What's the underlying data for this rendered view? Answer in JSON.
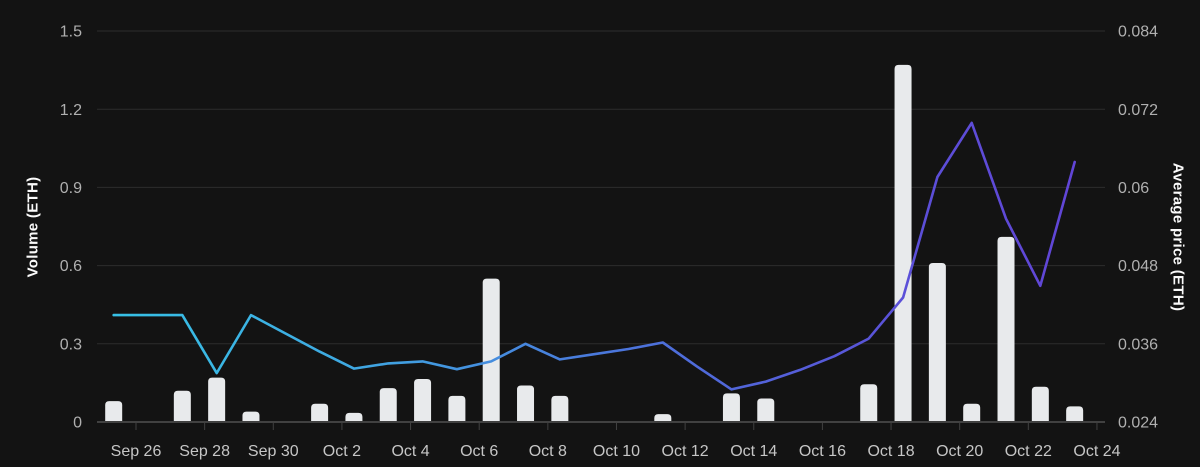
{
  "chart": {
    "left_axis_title": "Volume (ETH)",
    "right_axis_title": "Average price (ETH)"
  },
  "colors": {
    "background": "#131313",
    "grid": "#2d2d2d",
    "axis_line": "#414141",
    "bar": "#e8eaec",
    "y_tick_label": "#b0b0b0",
    "x_tick_label": "#c6c6c6",
    "axis_title": "#fafafa",
    "line_gradient": [
      "#36c3e6",
      "#3fa9e2",
      "#4a78dc",
      "#5b50d8",
      "#6243d6"
    ]
  },
  "chart_data": {
    "type": "combo",
    "title": "",
    "grid": true,
    "legend": false,
    "x_axis": {
      "tick_labels": [
        "Sep 26",
        "Sep 28",
        "Sep 30",
        "Oct 2",
        "Oct 4",
        "Oct 6",
        "Oct 8",
        "Oct 10",
        "Oct 12",
        "Oct 14",
        "Oct 16",
        "Oct 18",
        "Oct 20",
        "Oct 22",
        "Oct 24"
      ]
    },
    "left_axis": {
      "title": "Volume (ETH)",
      "range": [
        0,
        1.5
      ],
      "ticks": [
        0,
        0.3,
        0.6,
        0.9,
        1.2,
        1.5
      ],
      "tick_labels": [
        "0",
        "0.3",
        "0.6",
        "0.9",
        "1.2",
        "1.5"
      ]
    },
    "right_axis": {
      "title": "Average price (ETH)",
      "range": [
        0.024,
        0.084
      ],
      "ticks": [
        0.024,
        0.036,
        0.048,
        0.06,
        0.072,
        0.084
      ],
      "tick_labels": [
        "0.024",
        "0.036",
        "0.048",
        "0.06",
        "0.072",
        "0.084"
      ]
    },
    "series": [
      {
        "name": "Volume (ETH)",
        "type": "bar",
        "axis": "left",
        "color": "#e8eaec",
        "points": [
          {
            "date": "Sep 25",
            "value": 0.08
          },
          {
            "date": "Sep 27",
            "value": 0.12
          },
          {
            "date": "Sep 28",
            "value": 0.17
          },
          {
            "date": "Sep 29",
            "value": 0.04
          },
          {
            "date": "Oct 1",
            "value": 0.07
          },
          {
            "date": "Oct 2",
            "value": 0.035
          },
          {
            "date": "Oct 3",
            "value": 0.13
          },
          {
            "date": "Oct 4",
            "value": 0.165
          },
          {
            "date": "Oct 5",
            "value": 0.1
          },
          {
            "date": "Oct 6",
            "value": 0.55
          },
          {
            "date": "Oct 7",
            "value": 0.14
          },
          {
            "date": "Oct 8",
            "value": 0.1
          },
          {
            "date": "Oct 11",
            "value": 0.03
          },
          {
            "date": "Oct 13",
            "value": 0.11
          },
          {
            "date": "Oct 14",
            "value": 0.09
          },
          {
            "date": "Oct 17",
            "value": 0.145
          },
          {
            "date": "Oct 18",
            "value": 1.37
          },
          {
            "date": "Oct 19",
            "value": 0.61
          },
          {
            "date": "Oct 20",
            "value": 0.07
          },
          {
            "date": "Oct 21",
            "value": 0.71
          },
          {
            "date": "Oct 22",
            "value": 0.135
          },
          {
            "date": "Oct 23",
            "value": 0.06
          }
        ]
      },
      {
        "name": "Average price (ETH)",
        "type": "line",
        "axis": "right",
        "gradient": [
          "#36c3e6",
          "#3fa9e2",
          "#4a78dc",
          "#5b50d8",
          "#6243d6"
        ],
        "points": [
          {
            "date": "Sep 25",
            "value": 0.0404
          },
          {
            "date": "Sep 26",
            "value": 0.0404
          },
          {
            "date": "Sep 27",
            "value": 0.0404
          },
          {
            "date": "Sep 28",
            "value": 0.0315
          },
          {
            "date": "Sep 29",
            "value": 0.0404
          },
          {
            "date": "Sep 30",
            "value": 0.0376
          },
          {
            "date": "Oct 1",
            "value": 0.0348
          },
          {
            "date": "Oct 2",
            "value": 0.0322
          },
          {
            "date": "Oct 3",
            "value": 0.033
          },
          {
            "date": "Oct 4",
            "value": 0.0333
          },
          {
            "date": "Oct 5",
            "value": 0.0321
          },
          {
            "date": "Oct 6",
            "value": 0.0333
          },
          {
            "date": "Oct 7",
            "value": 0.036
          },
          {
            "date": "Oct 8",
            "value": 0.0336
          },
          {
            "date": "Oct 9",
            "value": 0.0344
          },
          {
            "date": "Oct 10",
            "value": 0.0352
          },
          {
            "date": "Oct 11",
            "value": 0.0362
          },
          {
            "date": "Oct 12",
            "value": 0.0325
          },
          {
            "date": "Oct 13",
            "value": 0.029
          },
          {
            "date": "Oct 14",
            "value": 0.0302
          },
          {
            "date": "Oct 15",
            "value": 0.032
          },
          {
            "date": "Oct 16",
            "value": 0.0341
          },
          {
            "date": "Oct 17",
            "value": 0.0368
          },
          {
            "date": "Oct 18",
            "value": 0.0431
          },
          {
            "date": "Oct 19",
            "value": 0.0616
          },
          {
            "date": "Oct 20",
            "value": 0.0699
          },
          {
            "date": "Oct 21",
            "value": 0.0552
          },
          {
            "date": "Oct 22",
            "value": 0.0449
          },
          {
            "date": "Oct 23",
            "value": 0.0639
          }
        ]
      }
    ]
  }
}
